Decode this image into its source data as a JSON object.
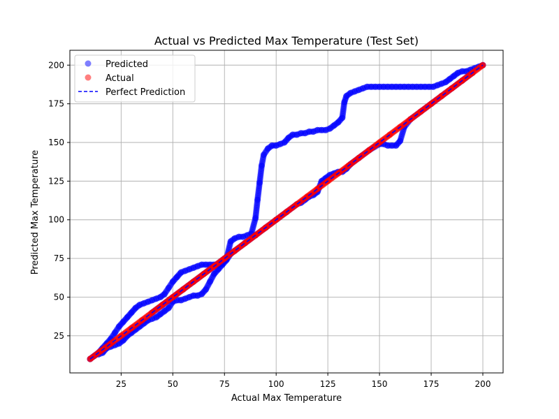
{
  "chart_data": {
    "type": "scatter",
    "title": "Actual vs Predicted Max Temperature (Test Set)",
    "xlabel": "Actual Max Temperature",
    "ylabel": "Predicted Max Temperature",
    "xlim": [
      0.2,
      209.8
    ],
    "ylim": [
      1.0,
      209.6
    ],
    "x_ticks": [
      25,
      50,
      75,
      100,
      125,
      150,
      175,
      200
    ],
    "y_ticks": [
      25,
      50,
      75,
      100,
      125,
      150,
      175,
      200
    ],
    "grid": true,
    "legend_position": "top-left",
    "legend": [
      "Predicted",
      "Actual",
      "Perfect Prediction"
    ],
    "colors": {
      "predicted": "#0000ff",
      "actual": "#ff0000",
      "perfect": "#0000ff",
      "grid": "#b0b0b0"
    },
    "series": [
      {
        "name": "Predicted",
        "marker": "circle",
        "points": [
          [
            10,
            10
          ],
          [
            12,
            12
          ],
          [
            14,
            14
          ],
          [
            16,
            17
          ],
          [
            18,
            20
          ],
          [
            20,
            23
          ],
          [
            22,
            27
          ],
          [
            24,
            31
          ],
          [
            26,
            34
          ],
          [
            28,
            37
          ],
          [
            30,
            40
          ],
          [
            32,
            43
          ],
          [
            34,
            45
          ],
          [
            36,
            46
          ],
          [
            38,
            47
          ],
          [
            40,
            48
          ],
          [
            42,
            49
          ],
          [
            44,
            50
          ],
          [
            46,
            52
          ],
          [
            48,
            56
          ],
          [
            50,
            60
          ],
          [
            52,
            63
          ],
          [
            54,
            66
          ],
          [
            56,
            67
          ],
          [
            58,
            68
          ],
          [
            60,
            69
          ],
          [
            62,
            70
          ],
          [
            64,
            71
          ],
          [
            66,
            71
          ],
          [
            68,
            71
          ],
          [
            70,
            71
          ],
          [
            72,
            71
          ],
          [
            74,
            72
          ],
          [
            76,
            75
          ],
          [
            78,
            86
          ],
          [
            80,
            88
          ],
          [
            82,
            89
          ],
          [
            84,
            89
          ],
          [
            86,
            90
          ],
          [
            88,
            91
          ],
          [
            90,
            101
          ],
          [
            91,
            113
          ],
          [
            92,
            124
          ],
          [
            93,
            135
          ],
          [
            94,
            142
          ],
          [
            96,
            146
          ],
          [
            98,
            148
          ],
          [
            100,
            148
          ],
          [
            102,
            149
          ],
          [
            104,
            150
          ],
          [
            106,
            153
          ],
          [
            108,
            155
          ],
          [
            110,
            155
          ],
          [
            112,
            156
          ],
          [
            114,
            156
          ],
          [
            116,
            157
          ],
          [
            118,
            157
          ],
          [
            120,
            158
          ],
          [
            122,
            158
          ],
          [
            124,
            158
          ],
          [
            126,
            159
          ],
          [
            128,
            161
          ],
          [
            130,
            163
          ],
          [
            132,
            166
          ],
          [
            133,
            176
          ],
          [
            134,
            180
          ],
          [
            136,
            182
          ],
          [
            138,
            183
          ],
          [
            140,
            184
          ],
          [
            142,
            185
          ],
          [
            144,
            186
          ],
          [
            146,
            186
          ],
          [
            148,
            186
          ],
          [
            150,
            186
          ],
          [
            152,
            186
          ],
          [
            154,
            186
          ],
          [
            156,
            186
          ],
          [
            158,
            186
          ],
          [
            160,
            186
          ],
          [
            162,
            186
          ],
          [
            164,
            186
          ],
          [
            166,
            186
          ],
          [
            168,
            186
          ],
          [
            170,
            186
          ],
          [
            172,
            186
          ],
          [
            174,
            186
          ],
          [
            176,
            186
          ],
          [
            178,
            187
          ],
          [
            180,
            188
          ],
          [
            182,
            189
          ],
          [
            184,
            191
          ],
          [
            186,
            193
          ],
          [
            188,
            195
          ],
          [
            190,
            196
          ],
          [
            192,
            196
          ],
          [
            194,
            197
          ],
          [
            196,
            198
          ],
          [
            198,
            199
          ],
          [
            200,
            200
          ],
          [
            14,
            13
          ],
          [
            16,
            14
          ],
          [
            18,
            17
          ],
          [
            20,
            18
          ],
          [
            22,
            19
          ],
          [
            24,
            20
          ],
          [
            26,
            22
          ],
          [
            28,
            25
          ],
          [
            30,
            27
          ],
          [
            32,
            29
          ],
          [
            34,
            31
          ],
          [
            36,
            33
          ],
          [
            38,
            35
          ],
          [
            40,
            36
          ],
          [
            42,
            37
          ],
          [
            44,
            39
          ],
          [
            46,
            41
          ],
          [
            48,
            43
          ],
          [
            50,
            47
          ],
          [
            52,
            48
          ],
          [
            54,
            48
          ],
          [
            56,
            49
          ],
          [
            58,
            50
          ],
          [
            60,
            51
          ],
          [
            62,
            51
          ],
          [
            64,
            52
          ],
          [
            66,
            55
          ],
          [
            68,
            60
          ],
          [
            70,
            65
          ],
          [
            72,
            68
          ],
          [
            74,
            71
          ],
          [
            76,
            74
          ],
          [
            78,
            78
          ],
          [
            40,
            40
          ],
          [
            45,
            45
          ],
          [
            55,
            55
          ],
          [
            60,
            60
          ],
          [
            65,
            65
          ],
          [
            80,
            80
          ],
          [
            85,
            85
          ],
          [
            90,
            90
          ],
          [
            95,
            95
          ],
          [
            100,
            100
          ],
          [
            105,
            105
          ],
          [
            110,
            110
          ],
          [
            112,
            111
          ],
          [
            114,
            113
          ],
          [
            116,
            115
          ],
          [
            118,
            116
          ],
          [
            120,
            118
          ],
          [
            122,
            125
          ],
          [
            124,
            127
          ],
          [
            126,
            129
          ],
          [
            128,
            130
          ],
          [
            130,
            131
          ],
          [
            132,
            131
          ],
          [
            134,
            133
          ],
          [
            136,
            136
          ],
          [
            140,
            140
          ],
          [
            145,
            145
          ],
          [
            150,
            149
          ],
          [
            152,
            149
          ],
          [
            154,
            148
          ],
          [
            156,
            148
          ],
          [
            158,
            148
          ],
          [
            160,
            151
          ],
          [
            162,
            160
          ],
          [
            165,
            165
          ],
          [
            170,
            170
          ],
          [
            175,
            175
          ],
          [
            180,
            180
          ],
          [
            185,
            185
          ],
          [
            190,
            190
          ],
          [
            195,
            195
          ]
        ]
      },
      {
        "name": "Actual",
        "marker": "circle",
        "points": [
          [
            10,
            10
          ],
          [
            15,
            15
          ],
          [
            20,
            20
          ],
          [
            25,
            25
          ],
          [
            30,
            30
          ],
          [
            35,
            35
          ],
          [
            40,
            40
          ],
          [
            45,
            45
          ],
          [
            50,
            50
          ],
          [
            55,
            55
          ],
          [
            60,
            60
          ],
          [
            65,
            65
          ],
          [
            70,
            70
          ],
          [
            75,
            75
          ],
          [
            80,
            80
          ],
          [
            85,
            85
          ],
          [
            90,
            90
          ],
          [
            95,
            95
          ],
          [
            100,
            100
          ],
          [
            105,
            105
          ],
          [
            110,
            110
          ],
          [
            115,
            115
          ],
          [
            120,
            120
          ],
          [
            125,
            125
          ],
          [
            130,
            130
          ],
          [
            135,
            135
          ],
          [
            140,
            140
          ],
          [
            145,
            145
          ],
          [
            150,
            150
          ],
          [
            155,
            155
          ],
          [
            160,
            160
          ],
          [
            165,
            165
          ],
          [
            170,
            170
          ],
          [
            175,
            175
          ],
          [
            180,
            180
          ],
          [
            185,
            185
          ],
          [
            190,
            190
          ],
          [
            195,
            195
          ],
          [
            200,
            200
          ]
        ]
      },
      {
        "name": "Perfect Prediction",
        "style": "dashed-line",
        "points": [
          [
            10,
            10
          ],
          [
            200,
            200
          ]
        ]
      }
    ]
  }
}
